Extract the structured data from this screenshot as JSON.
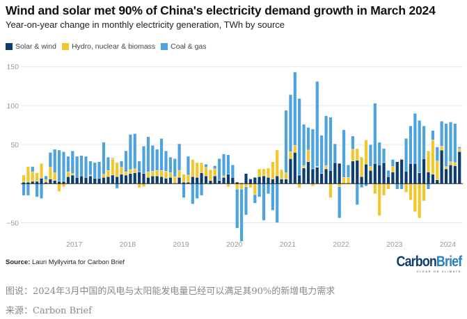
{
  "chart_data": {
    "type": "bar",
    "stacked": true,
    "title": "Wind and solar met 90% of China's electricity demand growth in March 2024",
    "subtitle": "Year-on-year change in monthly electricity generation, TWh by source",
    "xlabel": "",
    "ylabel": "",
    "ylim": [
      -60,
      150
    ],
    "yticks": [
      -50,
      0,
      50,
      100,
      150
    ],
    "ytick_labels": [
      "−50",
      "",
      "50",
      "100",
      "150"
    ],
    "xtick_labels": [
      "2017",
      "2018",
      "2019",
      "2020",
      "2021",
      "2022",
      "2023",
      "2024"
    ],
    "start_month": "2016-01",
    "end_month": "2024-03",
    "grid": true,
    "legend_position": "top-left",
    "series": [
      {
        "name": "Solar & wind",
        "color": "#0c3d6e",
        "values": [
          2,
          2,
          3,
          3,
          7,
          2,
          6,
          4,
          3,
          3,
          9,
          11,
          8,
          10,
          8,
          10,
          7,
          7,
          8,
          9,
          11,
          9,
          12,
          11,
          13,
          14,
          15,
          13,
          8,
          10,
          10,
          9,
          7,
          8,
          1,
          8,
          2,
          2,
          9,
          8,
          14,
          10,
          4,
          10,
          4,
          8,
          12,
          8,
          2,
          1,
          13,
          6,
          8,
          9,
          10,
          8,
          6,
          10,
          6,
          6,
          32,
          40,
          11,
          20,
          28,
          19,
          21,
          13,
          19,
          17,
          27,
          26,
          0,
          0,
          29,
          30,
          9,
          25,
          17,
          26,
          24,
          27,
          9,
          15,
          28,
          31,
          16,
          26,
          26,
          14,
          32,
          15,
          12,
          5,
          43,
          19,
          24,
          23,
          41
        ]
      },
      {
        "name": "Hydro, nuclear & biomass",
        "color": "#f2c72b",
        "values": [
          9,
          20,
          12,
          11,
          19,
          3,
          15,
          10,
          -10,
          -4,
          6,
          2,
          0,
          0,
          0,
          1,
          0,
          0,
          4,
          8,
          21,
          18,
          9,
          4,
          5,
          5,
          -5,
          -4,
          7,
          6,
          7,
          8,
          9,
          6,
          8,
          9,
          10,
          9,
          22,
          19,
          13,
          11,
          14,
          9,
          0,
          2,
          -4,
          0,
          -7,
          -7,
          -4,
          -5,
          -14,
          10,
          9,
          12,
          22,
          33,
          12,
          8,
          9,
          9,
          -5,
          3,
          15,
          -3,
          1,
          -1,
          4,
          -18,
          0,
          -4,
          8,
          8,
          15,
          15,
          25,
          31,
          5,
          -13,
          -41,
          -15,
          -7,
          7,
          0,
          1,
          -11,
          -21,
          -36,
          -44,
          -22,
          27,
          44,
          24,
          5,
          3,
          4,
          4,
          4
        ]
      },
      {
        "name": "Coal & gas",
        "color": "#4ea3dc",
        "values": [
          -15,
          -15,
          7,
          -17,
          -19,
          5,
          19,
          30,
          40,
          38,
          20,
          29,
          27,
          26,
          27,
          18,
          20,
          21,
          41,
          17,
          1,
          -6,
          8,
          27,
          45,
          45,
          14,
          35,
          45,
          33,
          27,
          41,
          26,
          20,
          23,
          34,
          -18,
          24,
          -26,
          -19,
          -15,
          4,
          -1,
          4,
          28,
          28,
          25,
          16,
          -50,
          -67,
          -36,
          0,
          -11,
          -17,
          -47,
          -13,
          -34,
          -50,
          0,
          80,
          73,
          94,
          98,
          53,
          29,
          51,
          109,
          49,
          64,
          68,
          24,
          -40,
          61,
          16,
          17,
          -27,
          -5,
          -3,
          28,
          77,
          29,
          18,
          8,
          9,
          -7,
          -7,
          42,
          48,
          64,
          67,
          42,
          -7,
          12,
          18,
          32,
          55,
          51,
          50,
          2
        ]
      }
    ]
  },
  "source": {
    "label": "Source:",
    "text": "Lauri Myllyvirta for Carbon Brief"
  },
  "logo": {
    "part1": "Carbon",
    "part2": "Brief",
    "tagline": "CLEAR ON CLIMATE"
  },
  "caption": "图说：2024年3月中国的风电与太阳能发电量已经可以满足其90%的新增电力需求",
  "credit": "来源：Carbon Brief"
}
